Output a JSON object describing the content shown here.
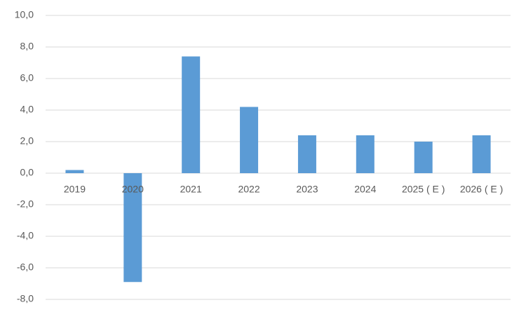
{
  "chart_data": {
    "type": "bar",
    "categories": [
      "2019",
      "2020",
      "2021",
      "2022",
      "2023",
      "2024",
      "2025 ( E )",
      "2026 ( E )"
    ],
    "values": [
      0.2,
      -6.9,
      7.4,
      4.2,
      2.4,
      2.4,
      2.0,
      2.4
    ],
    "color": "#5b9bd5",
    "ylim": [
      -8,
      10
    ],
    "yticks": [
      {
        "value": -8,
        "label": "-8,0"
      },
      {
        "value": -6,
        "label": "-6,0"
      },
      {
        "value": -4,
        "label": "-4,0"
      },
      {
        "value": -2,
        "label": "-2,0"
      },
      {
        "value": 0,
        "label": "0,0"
      },
      {
        "value": 2,
        "label": "2,0"
      },
      {
        "value": 4,
        "label": "4,0"
      },
      {
        "value": 6,
        "label": "6,0"
      },
      {
        "value": 8,
        "label": "8,0"
      },
      {
        "value": 10,
        "label": "10,0"
      }
    ],
    "grid": true
  }
}
